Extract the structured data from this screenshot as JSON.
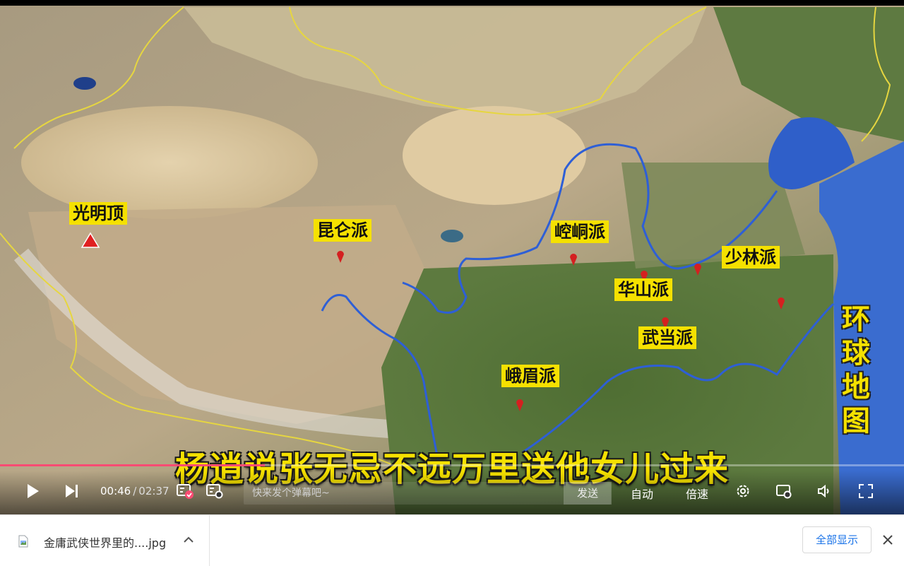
{
  "map": {
    "vertical_title": "环球地图",
    "subtitle": "杨逍说张无忌不远万里送他女儿过来",
    "labels": [
      {
        "id": "guangmingding",
        "text": "光明顶"
      },
      {
        "id": "kunlun",
        "text": "昆仑派"
      },
      {
        "id": "kongtong",
        "text": "崆峒派"
      },
      {
        "id": "shaolin",
        "text": "少林派"
      },
      {
        "id": "huashan",
        "text": "华山派"
      },
      {
        "id": "wudang",
        "text": "武当派"
      },
      {
        "id": "emei",
        "text": "峨眉派"
      }
    ],
    "colors": {
      "label_bg": "#f5e100",
      "river": "#2e5fd6",
      "border": "#e6d640",
      "marker": "#d42020"
    }
  },
  "player": {
    "current_time": "00:46",
    "separator": "/",
    "duration": "02:37",
    "progress": 0.293,
    "danmaku_placeholder": "快来发个弹幕吧~",
    "send_label": "发送",
    "auto_label": "自动",
    "speed_label": "倍速",
    "accent": "#fb4b73",
    "icons": [
      "play-icon",
      "next-icon",
      "danmaku-toggle-icon",
      "danmaku-settings-icon",
      "settings-icon",
      "pip-icon",
      "volume-icon",
      "fullscreen-icon"
    ]
  },
  "downloads": {
    "file_name": "金庸武侠世界里的....jpg",
    "show_all_label": "全部显示",
    "icons": [
      "file-icon",
      "chevron-up-icon",
      "close-icon"
    ]
  }
}
